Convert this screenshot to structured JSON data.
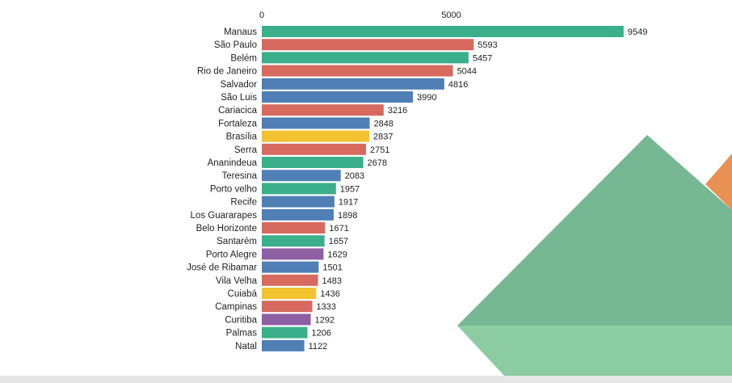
{
  "colors": {
    "green": "#3baf8a",
    "red": "#d66a5f",
    "blue": "#4f7fb5",
    "yellow": "#f2c231",
    "purple": "#8e5fa3",
    "deco_green_dark": "#76b893",
    "deco_green_light": "#8ccca2",
    "deco_orange": "#e89152",
    "footer": "#e6e6e6"
  },
  "chart_data": {
    "type": "bar",
    "orientation": "horizontal",
    "title": "",
    "xlabel": "",
    "ylabel": "",
    "xlim": [
      0,
      10000
    ],
    "x_ticks": [
      0,
      5000
    ],
    "axis_position": "top",
    "grid": false,
    "legend": "none",
    "categories": [
      "Manaus",
      "São Paulo",
      "Belém",
      "Rio de Janeiro",
      "Salvador",
      "São Luis",
      "Cariacica",
      "Fortaleza",
      "Brasília",
      "Serra",
      "Ananindeua",
      "Teresina",
      "Porto velho",
      "Recife",
      "Los Guararapes",
      "Belo Horizonte",
      "Santarém",
      "Porto Alegre",
      "José de Ribamar",
      "Vila Velha",
      "Cuiabá",
      "Campinas",
      "Curitiba",
      "Palmas",
      "Natal"
    ],
    "values": [
      9549,
      5593,
      5457,
      5044,
      4816,
      3990,
      3216,
      2848,
      2837,
      2751,
      2678,
      2083,
      1957,
      1917,
      1898,
      1671,
      1657,
      1629,
      1501,
      1483,
      1436,
      1333,
      1292,
      1206,
      1122
    ],
    "bar_colors": [
      "green",
      "red",
      "green",
      "red",
      "blue",
      "blue",
      "red",
      "blue",
      "yellow",
      "red",
      "green",
      "blue",
      "green",
      "blue",
      "blue",
      "red",
      "green",
      "purple",
      "blue",
      "red",
      "yellow",
      "red",
      "purple",
      "green",
      "blue"
    ]
  }
}
